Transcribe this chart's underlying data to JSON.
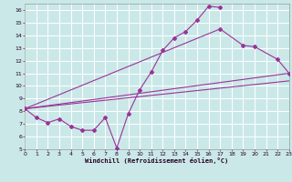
{
  "xlabel": "Windchill (Refroidissement éolien,°C)",
  "xlim": [
    0,
    23
  ],
  "ylim": [
    5,
    16.5
  ],
  "xticks": [
    0,
    1,
    2,
    3,
    4,
    5,
    6,
    7,
    8,
    9,
    10,
    11,
    12,
    13,
    14,
    15,
    16,
    17,
    18,
    19,
    20,
    21,
    22,
    23
  ],
  "yticks": [
    5,
    6,
    7,
    8,
    9,
    10,
    11,
    12,
    13,
    14,
    15,
    16
  ],
  "bg_color": "#cbe8e8",
  "grid_color": "#ffffff",
  "line_color": "#993399",
  "curve1_x": [
    0,
    1,
    2,
    3,
    4,
    5,
    6,
    7,
    8,
    9,
    10,
    11,
    12,
    13,
    14,
    15,
    16,
    17
  ],
  "curve1_y": [
    8.2,
    7.5,
    7.1,
    7.4,
    6.8,
    6.5,
    6.5,
    7.5,
    5.1,
    7.8,
    9.7,
    11.1,
    12.8,
    13.8,
    14.3,
    15.2,
    16.3,
    16.2
  ],
  "curve2_x": [
    0,
    17,
    19,
    20,
    22,
    23
  ],
  "curve2_y": [
    8.2,
    14.5,
    13.2,
    13.1,
    12.1,
    11.0
  ],
  "curve3_x": [
    0,
    23
  ],
  "curve3_y": [
    8.2,
    11.0
  ],
  "curve4_x": [
    0,
    23
  ],
  "curve4_y": [
    8.2,
    10.4
  ]
}
